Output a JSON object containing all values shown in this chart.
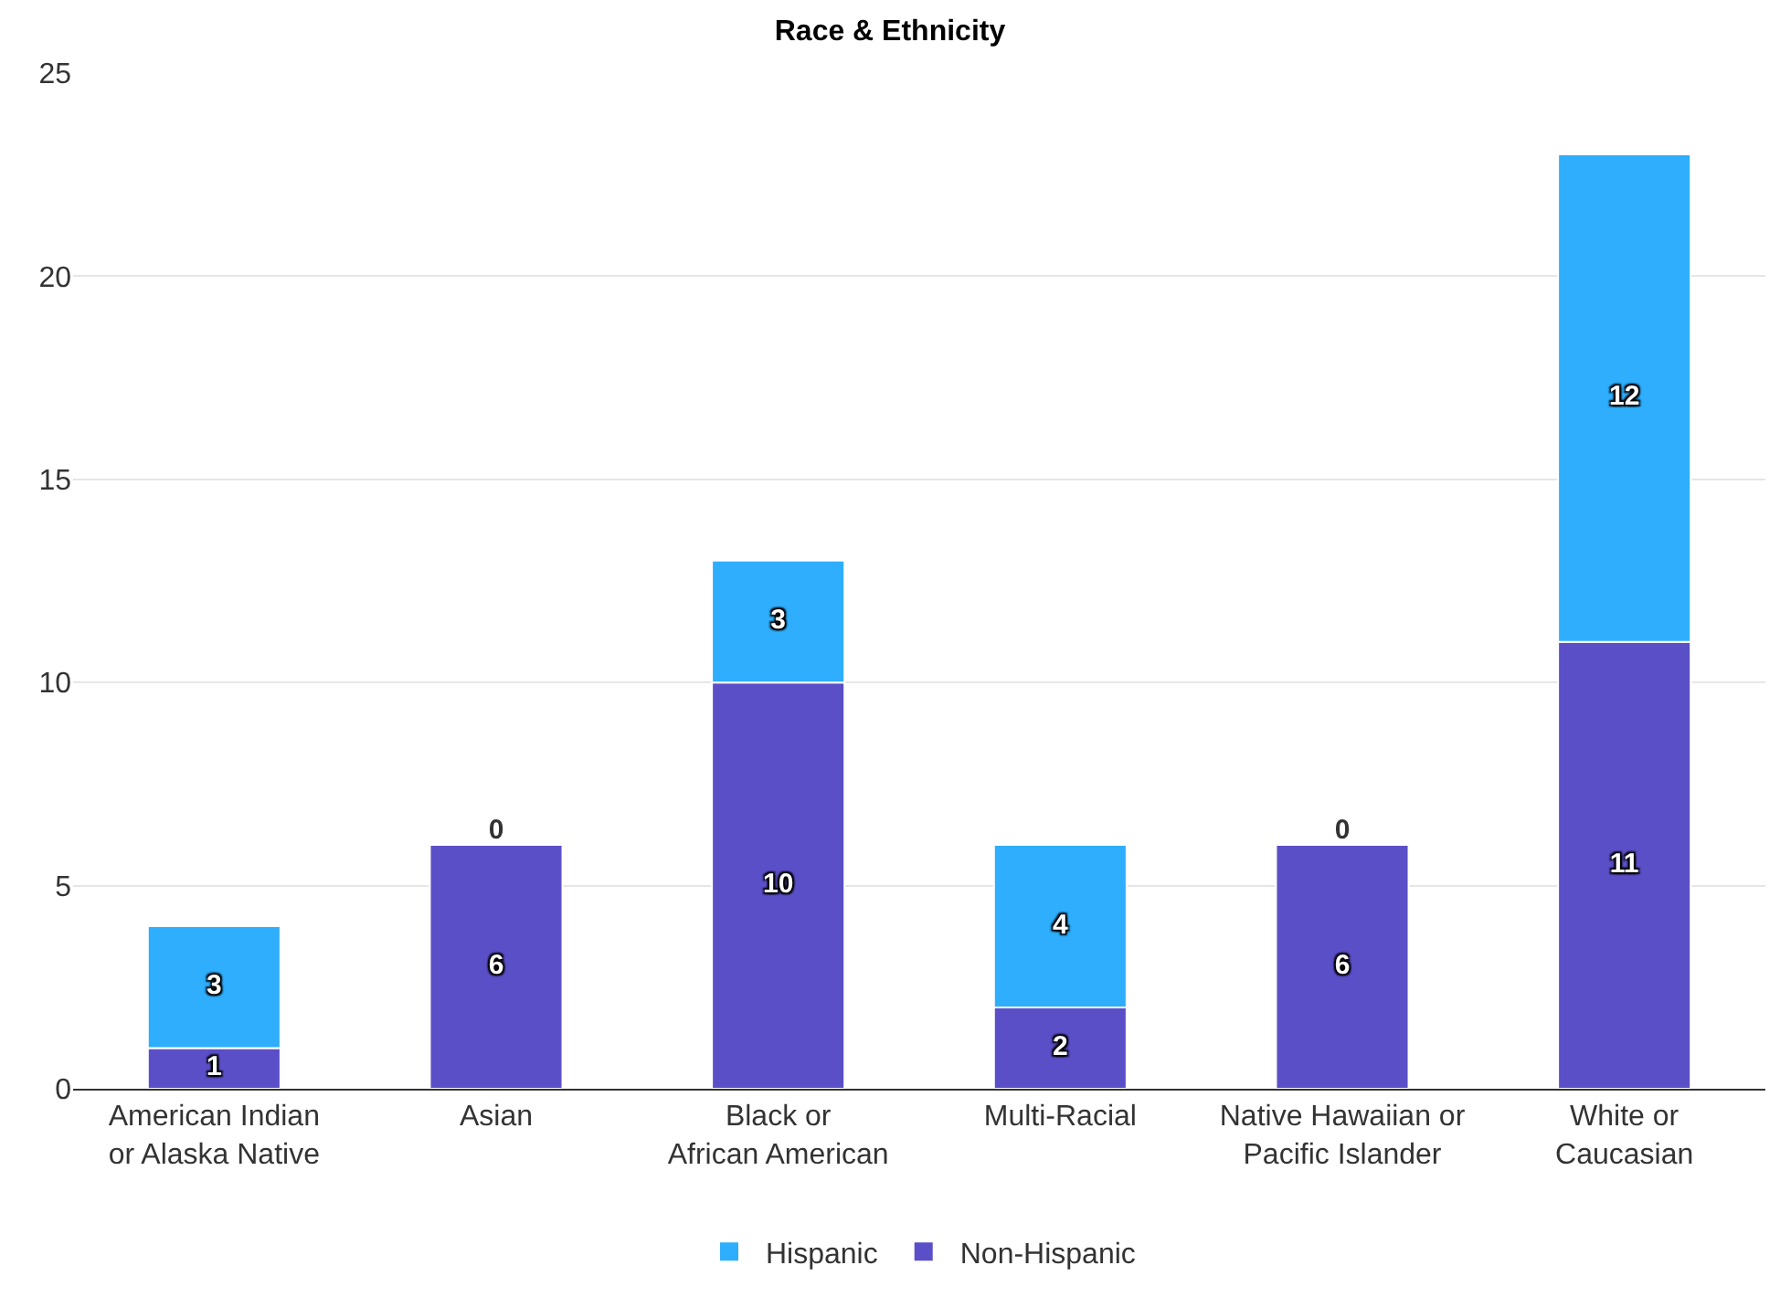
{
  "chart_data": {
    "type": "bar",
    "title": "Race & Ethnicity",
    "stacked": true,
    "categories": [
      "American Indian or Alaska Native",
      "Asian",
      "Black or African American",
      "Multi-Racial",
      "Native Hawaiian or Pacific Islander",
      "White or Caucasian"
    ],
    "series": [
      {
        "name": "Non-Hispanic",
        "color": "#5b4fc8",
        "values": [
          1,
          6,
          10,
          2,
          6,
          11
        ]
      },
      {
        "name": "Hispanic",
        "color": "#2eaefc",
        "values": [
          3,
          0,
          3,
          4,
          0,
          12
        ]
      }
    ],
    "ylim": [
      0,
      25
    ],
    "yticks": [
      0,
      5,
      10,
      15,
      20,
      25
    ],
    "grid": "y",
    "legend": "bottom",
    "data_labels": true
  }
}
